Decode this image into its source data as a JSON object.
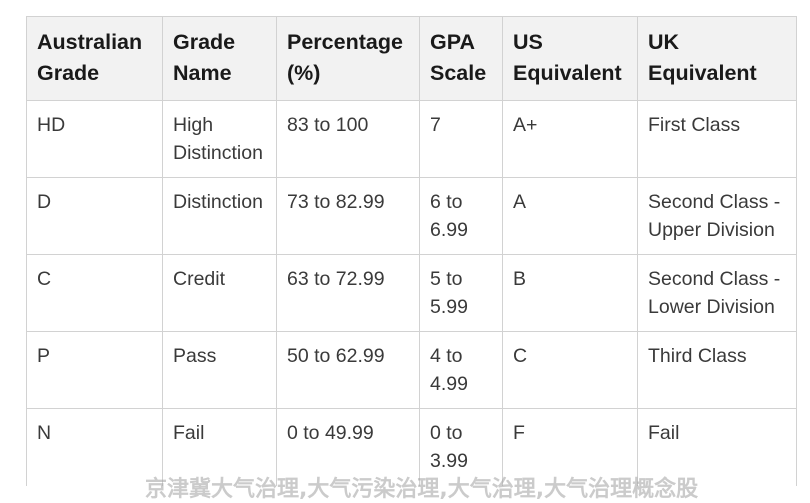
{
  "table": {
    "headers": [
      "Australian Grade",
      "Grade Name",
      "Percentage (%)",
      "GPA Scale",
      "US Equivalent",
      "UK Equivalent"
    ],
    "rows": [
      [
        "HD",
        "High Distinction",
        "83 to 100",
        "7",
        "A+",
        "First Class"
      ],
      [
        "D",
        "Distinction",
        "73 to 82.99",
        "6 to 6.99",
        "A",
        "Second Class - Upper Division"
      ],
      [
        "C",
        "Credit",
        "63 to 72.99",
        "5 to 5.99",
        "B",
        "Second Class - Lower Division"
      ],
      [
        "P",
        "Pass",
        "50 to 62.99",
        "4 to 4.99",
        "C",
        "Third Class"
      ],
      [
        "N",
        "Fail",
        "0 to 49.99",
        "0 to 3.99",
        "F",
        "Fail"
      ]
    ]
  },
  "watermark": "京津冀大气治理,大气污染治理,大气治理,大气治理概念股"
}
